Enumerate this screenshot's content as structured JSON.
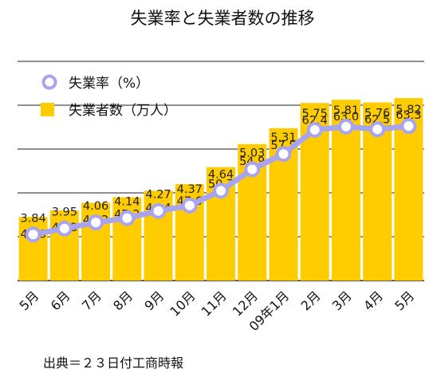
{
  "chart_data": {
    "type": "bar+line",
    "title": "失業率と失業者数の推移",
    "categories": [
      "5月",
      "6月",
      "7月",
      "8月",
      "9月",
      "10月",
      "11月",
      "12月",
      "09年1月",
      "2月",
      "3月",
      "4月",
      "5月"
    ],
    "series": [
      {
        "name": "失業者数（万人）",
        "kind": "bar",
        "color": "#ffcc00",
        "values": [
          41.6,
          42.8,
          44.2,
          45.2,
          46.4,
          47.6,
          50.7,
          54.9,
          57.8,
          62.4,
          63.0,
          62.5,
          63.3
        ],
        "labels": [
          "41.6",
          "42.8",
          "44.2",
          "45.2",
          "46.4",
          "47.6",
          "50.7",
          "54.9",
          "57.8",
          "62.4",
          "63.0",
          "62.5",
          "63.3"
        ]
      },
      {
        "name": "失業率（%）",
        "kind": "line",
        "color": "#a9a4f0",
        "values": [
          3.84,
          3.95,
          4.06,
          4.14,
          4.27,
          4.37,
          4.64,
          5.03,
          5.31,
          5.75,
          5.81,
          5.76,
          5.82
        ],
        "labels": [
          "3.84",
          "3.95",
          "4.06",
          "4.14",
          "4.27",
          "4.37",
          "4.64",
          "5.03",
          "5.31",
          "5.75",
          "5.81",
          "5.76",
          "5.82"
        ]
      }
    ],
    "bar_axis": {
      "min": 30,
      "max": 70
    },
    "line_axis": {
      "min": 3,
      "max": 7
    },
    "grid": true,
    "legend_position": "top-left"
  },
  "source": "出典＝２３日付工商時報"
}
